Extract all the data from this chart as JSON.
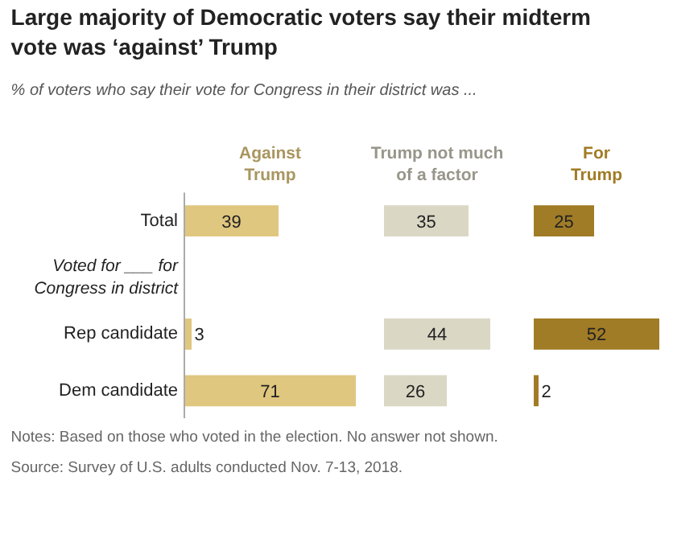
{
  "chart_data": [
    {
      "type": "other",
      "title": "Large majority of Democratic voters say their midterm vote was ‘against’ Trump",
      "subtitle": "% of voters who say their vote for Congress in their district was ...",
      "annotations": [
        "Notes: Based on those who voted in the election. No answer not shown.",
        "Source: Survey of U.S. adults conducted Nov. 7-13, 2018."
      ]
    },
    {
      "type": "bar",
      "orientation": "horizontal",
      "title": "Against Trump",
      "categories": [
        "Total",
        "Voted for ___ for Congress in district",
        "Rep candidate",
        "Dem candidate"
      ],
      "color": "#e0c77f",
      "values": [
        39,
        null,
        3,
        71
      ],
      "data_labels": true
    },
    {
      "type": "bar",
      "orientation": "horizontal",
      "title": "Trump not much of a factor",
      "categories": [
        "Total",
        "Voted for ___ for Congress in district",
        "Rep candidate",
        "Dem candidate"
      ],
      "color": "#dad7c5",
      "values": [
        35,
        null,
        44,
        26
      ],
      "data_labels": true,
      "tick_labels": false
    },
    {
      "type": "bar",
      "orientation": "horizontal",
      "title": "For Trump",
      "categories": [
        "Total",
        "Voted for ___ for Congress in district",
        "Rep candidate",
        "Dem candidate"
      ],
      "color": "#a17c26",
      "values": [
        25,
        null,
        52,
        2
      ],
      "data_labels": true,
      "tick_labels": false
    }
  ]
}
